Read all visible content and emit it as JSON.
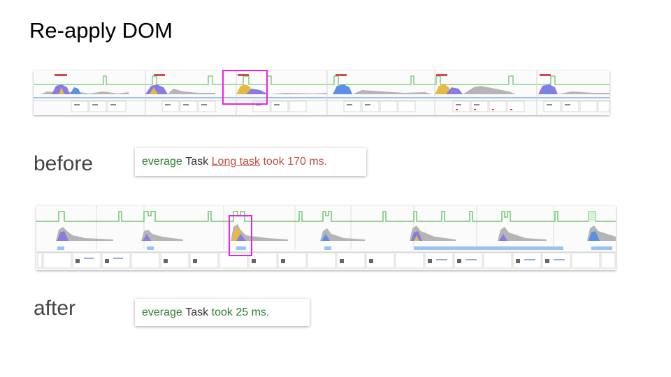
{
  "title": "Re-apply DOM",
  "before": {
    "label": "before",
    "log": {
      "prefix": "everage",
      "task": "Task",
      "link": "Long task",
      "suffix": "took 170 ms."
    }
  },
  "after": {
    "label": "after",
    "log": {
      "prefix": "everage",
      "task": "Task",
      "suffix": "took 25 ms."
    }
  },
  "colors": {
    "highlight": "#e822e8",
    "fps_line": "#6cc96c",
    "cpu_yellow": "#e6b93f",
    "cpu_purple": "#8a7be0",
    "cpu_blue": "#5b8fe6",
    "cpu_gray": "#9e9e9e",
    "network_bar": "#9cc2ee",
    "log_green": "#2e7d32",
    "log_red": "#c0503c"
  }
}
